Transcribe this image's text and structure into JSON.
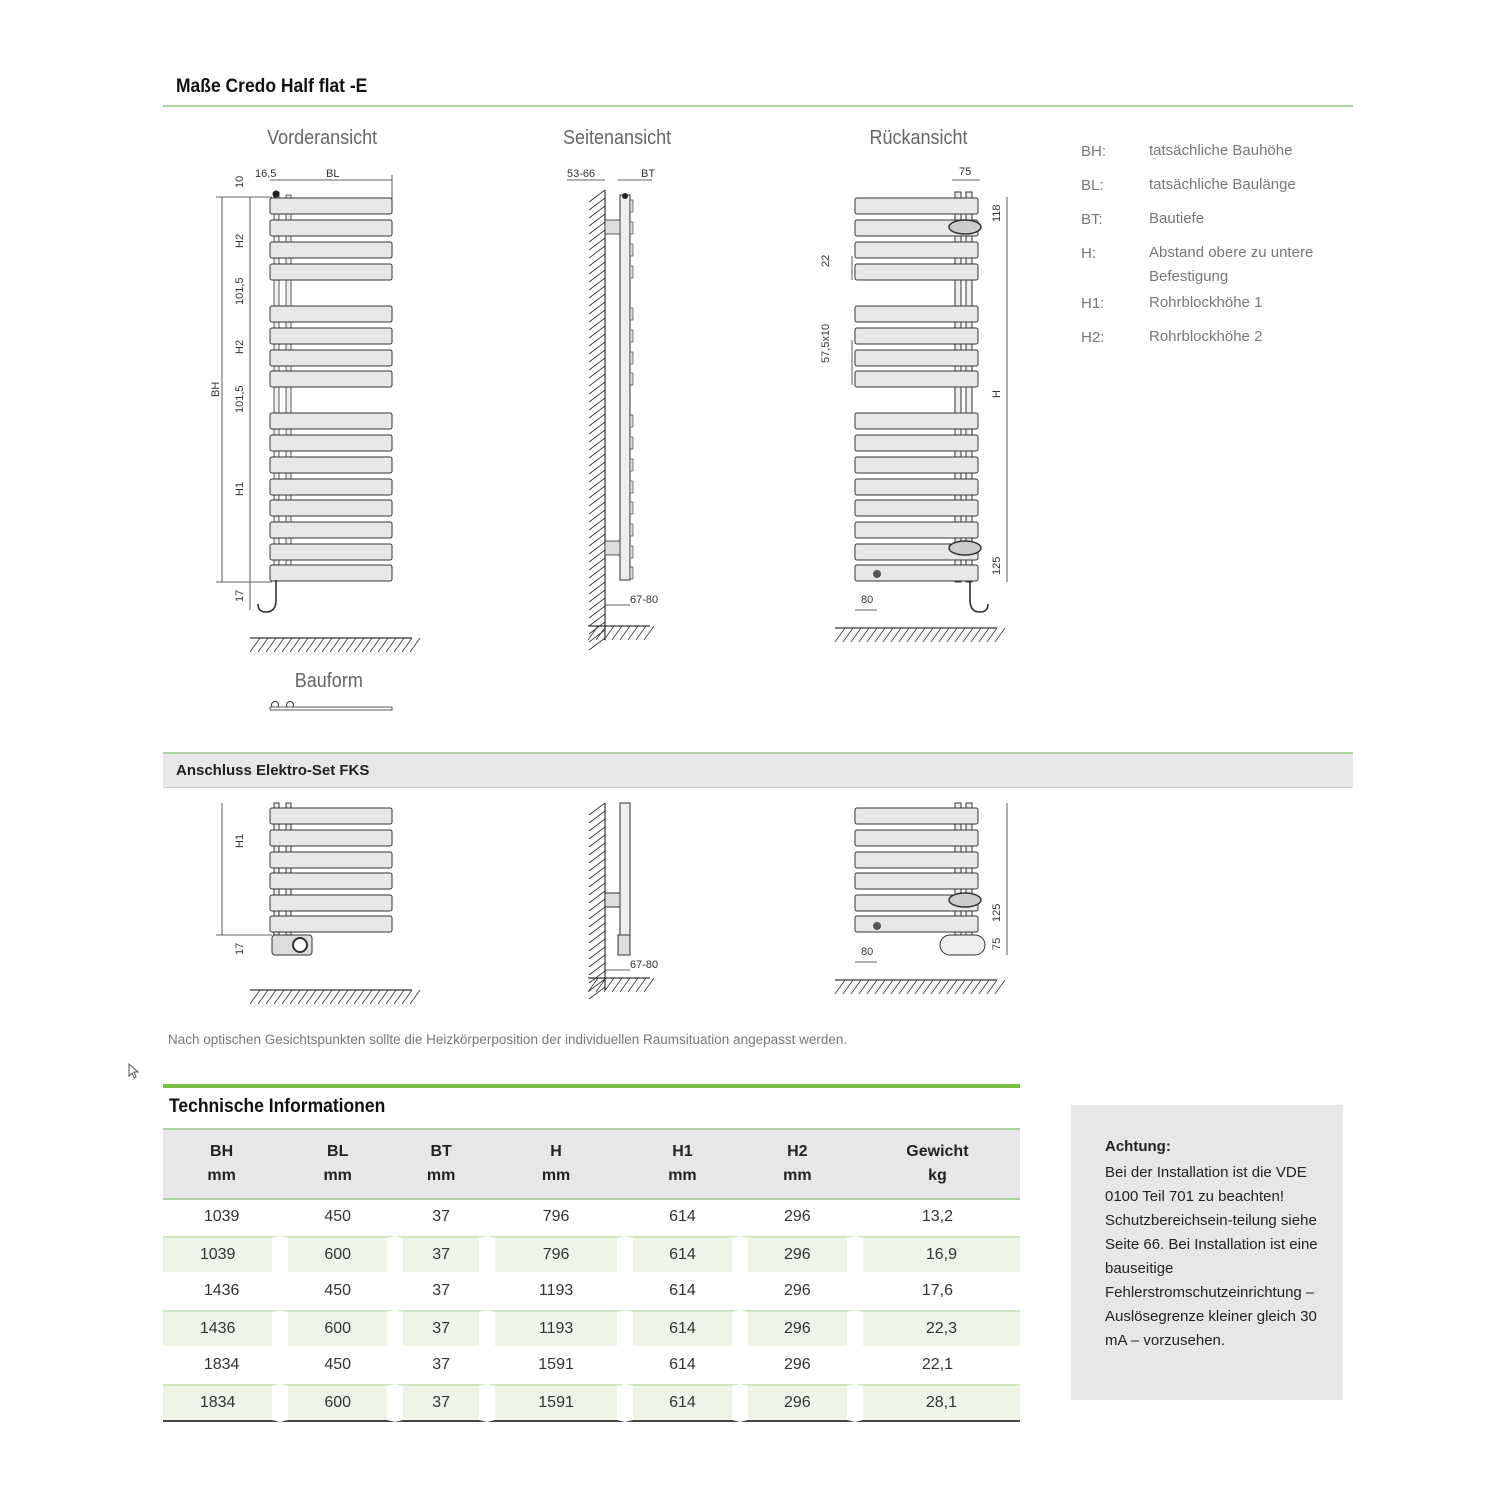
{
  "title": "Maße Credo Half flat -E",
  "views": {
    "front": "Vorderansicht",
    "side": "Seitenansicht",
    "back": "Rückansicht",
    "form": "Bauform"
  },
  "dims": {
    "front": {
      "d10": "10",
      "d16": "16,5",
      "bl": "BL",
      "h2a": "H2",
      "d101a": "101,5",
      "h2b": "H2",
      "d101b": "101,5",
      "bh": "BH",
      "h1": "H1",
      "d17": "17"
    },
    "side": {
      "d5366": "53-66",
      "bt": "BT",
      "d6780": "67-80"
    },
    "back": {
      "d75": "75",
      "d118": "118",
      "d22": "22",
      "d575": "57,5x10",
      "h": "H",
      "d125": "125",
      "d80": "80"
    },
    "fks_front": {
      "h1": "H1",
      "d17": "17"
    },
    "fks_side": {
      "d6780": "67-80"
    },
    "fks_back": {
      "d125": "125",
      "d75": "75",
      "d80": "80"
    }
  },
  "legend": [
    {
      "k": "BH:",
      "v": "tatsächliche Bauhöhe"
    },
    {
      "k": "BL:",
      "v": "tatsächliche Baulänge"
    },
    {
      "k": "BT:",
      "v": "Bautiefe"
    },
    {
      "k": "H:",
      "v": "Abstand obere zu untere Befestigung"
    },
    {
      "k": "H1:",
      "v": "Rohrblockhöhe 1"
    },
    {
      "k": "H2:",
      "v": "Rohrblockhöhe 2"
    }
  ],
  "section2": "Anschluss Elektro-Set FKS",
  "note": "Nach optischen Gesichtspunkten sollte die Heizkörperposition der individuellen Raumsituation angepasst werden.",
  "table": {
    "title": "Technische Informationen",
    "headers": [
      [
        "BH",
        "mm"
      ],
      [
        "BL",
        "mm"
      ],
      [
        "BT",
        "mm"
      ],
      [
        "H",
        "mm"
      ],
      [
        "H1",
        "mm"
      ],
      [
        "H2",
        "mm"
      ],
      [
        "Gewicht",
        "kg"
      ]
    ],
    "rows": [
      [
        "1039",
        "450",
        "37",
        "796",
        "614",
        "296",
        "13,2"
      ],
      [
        "1039",
        "600",
        "37",
        "796",
        "614",
        "296",
        "16,9"
      ],
      [
        "1436",
        "450",
        "37",
        "1193",
        "614",
        "296",
        "17,6"
      ],
      [
        "1436",
        "600",
        "37",
        "1193",
        "614",
        "296",
        "22,3"
      ],
      [
        "1834",
        "450",
        "37",
        "1591",
        "614",
        "296",
        "22,1"
      ],
      [
        "1834",
        "600",
        "37",
        "1591",
        "614",
        "296",
        "28,1"
      ]
    ]
  },
  "warning": {
    "title": "Achtung:",
    "text": "Bei der Installation ist die VDE 0100 Teil 701 zu beachten! Schutzbereichsein-teilung siehe Seite 66. Bei Installation ist eine bauseitige Fehlerstromschutzeinrichtung – Auslösegrenze kleiner gleich 30 mA – vorzusehen."
  },
  "colors": {
    "accent": "#7ac143",
    "band": "#e6e7e8",
    "row_alt": "#eef5e6"
  }
}
